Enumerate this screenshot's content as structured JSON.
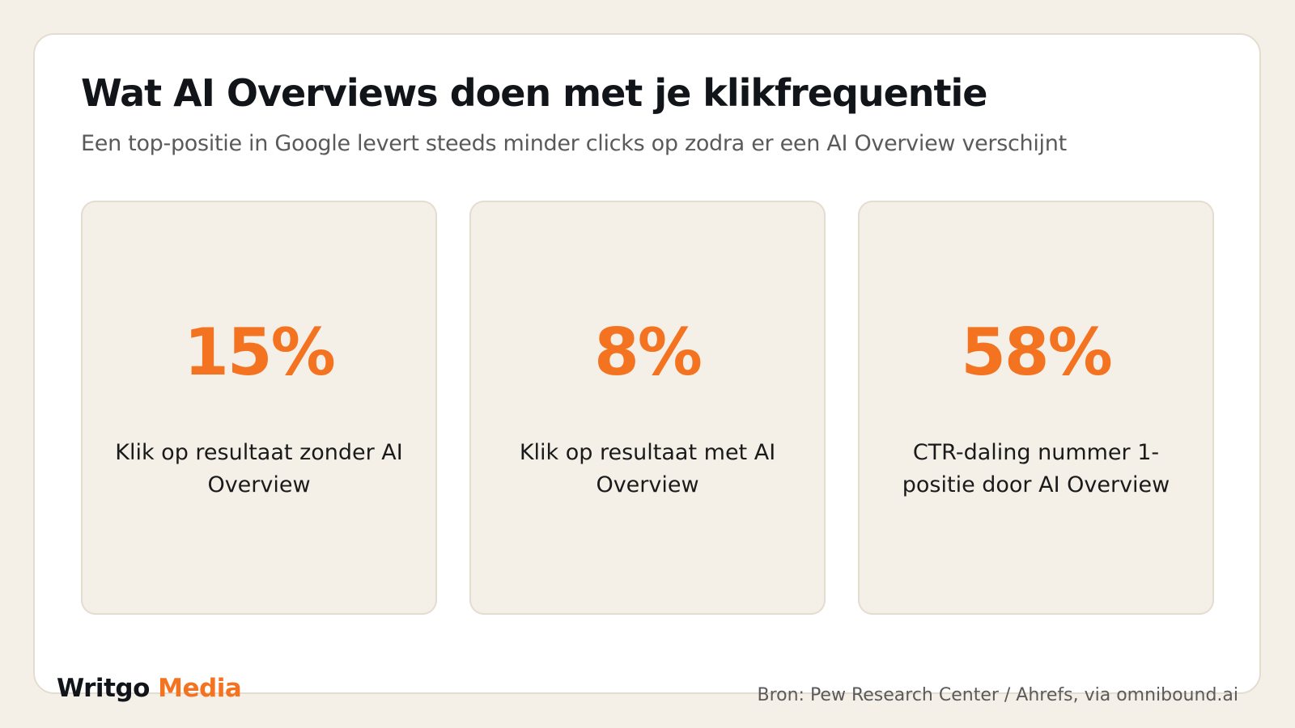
{
  "header": {
    "title": "Wat AI Overviews doen met je klikfrequentie",
    "subtitle": "Een top-positie in Google levert steeds minder clicks op zodra er een AI Overview verschijnt"
  },
  "stats": [
    {
      "value": "15%",
      "label": "Klik op resultaat zonder AI Overview"
    },
    {
      "value": "8%",
      "label": "Klik op resultaat met AI Overview"
    },
    {
      "value": "58%",
      "label": "CTR-daling nummer 1-positie door AI Overview"
    }
  ],
  "footer": {
    "logo_part1": "Writgo",
    "logo_part2": "Media",
    "source": "Bron: Pew Research Center / Ahrefs, via omnibound.ai"
  },
  "colors": {
    "background": "#f4f0e8",
    "card": "#ffffff",
    "accent": "#f47321",
    "text": "#111418",
    "muted": "#5a5a5a"
  }
}
